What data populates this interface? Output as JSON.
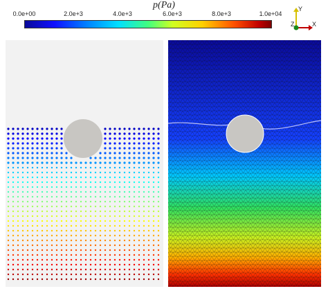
{
  "colorbar": {
    "title": "p(Pa)",
    "ticks": [
      "0.0e+00",
      "2.0e+3",
      "4.0e+3",
      "6.0e+3",
      "8.0e+3",
      "1.0e+04"
    ],
    "range": [
      0,
      10000
    ]
  },
  "axes_widget": {
    "y_label": "Y",
    "z_label": "Z",
    "x_label": "X"
  },
  "colors": {
    "background_left": "#f2f2f2",
    "obstacle": "#c8c6c2",
    "mesh_lines": "#1a1a1a"
  }
}
